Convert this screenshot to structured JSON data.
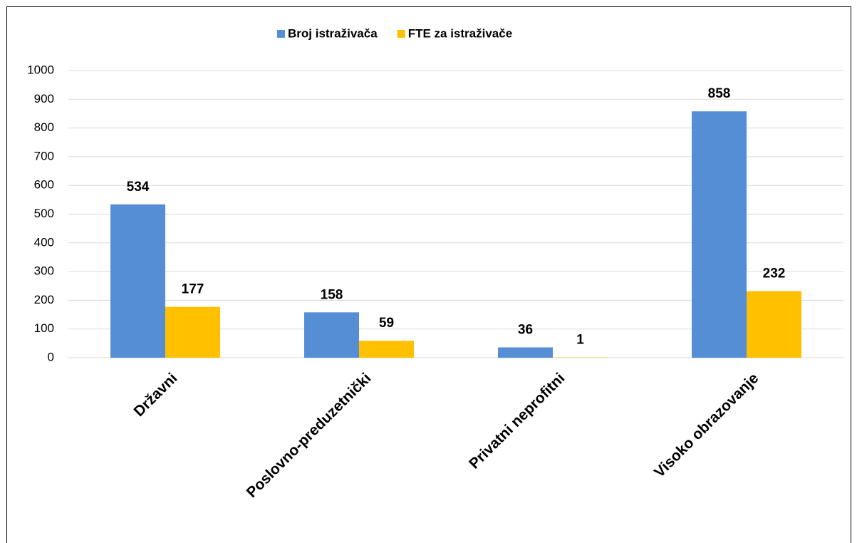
{
  "chart_data": {
    "type": "bar",
    "categories": [
      "Državni",
      "Poslovno-preduzetnički",
      "Privatni neprofitni",
      "Visoko obrazovanje"
    ],
    "series": [
      {
        "name": "Broj istraživača",
        "color": "#558ed5",
        "values": [
          534,
          158,
          36,
          858
        ]
      },
      {
        "name": "FTE za istraživače",
        "color": "#ffc000",
        "values": [
          177,
          59,
          1,
          232
        ]
      }
    ],
    "ylim": [
      0,
      1000
    ],
    "yticks": [
      0,
      100,
      200,
      300,
      400,
      500,
      600,
      700,
      800,
      900,
      1000
    ],
    "grid": true,
    "legend": "top"
  }
}
